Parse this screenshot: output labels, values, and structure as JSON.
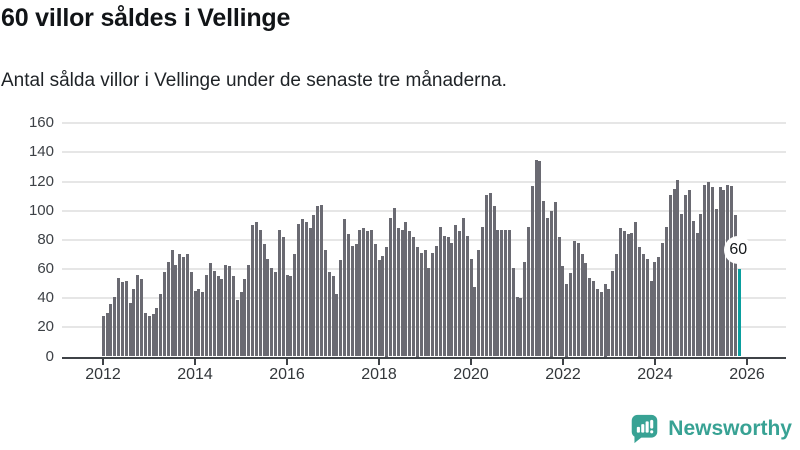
{
  "header": {
    "title": "60 villor såldes i Vellinge",
    "subtitle": "Antal sålda villor i Vellinge under de senaste tre månaderna."
  },
  "chart_data": {
    "type": "bar",
    "title": "60 villor såldes i Vellinge",
    "subtitle": "Antal sålda villor i Vellinge under de senaste tre månaderna.",
    "frequency": "monthly",
    "x_start": "2012-01",
    "x_end": "2025-11",
    "x_tick_labels": [
      "2012",
      "2014",
      "2016",
      "2018",
      "2020",
      "2022",
      "2024",
      "2026"
    ],
    "y_ticks": [
      0,
      20,
      40,
      60,
      80,
      100,
      120,
      140,
      160
    ],
    "ylim": [
      0,
      160
    ],
    "grid": "horizontal",
    "values": [
      28,
      30,
      36,
      41,
      54,
      51,
      52,
      37,
      46,
      56,
      53,
      30,
      28,
      29,
      33,
      43,
      58,
      65,
      73,
      63,
      70,
      68,
      70,
      58,
      45,
      46,
      44,
      56,
      64,
      59,
      55,
      53,
      63,
      62,
      55,
      39,
      44,
      53,
      63,
      90,
      92,
      87,
      77,
      67,
      61,
      58,
      87,
      82,
      56,
      55,
      70,
      91,
      94,
      92,
      88,
      97,
      103,
      104,
      73,
      58,
      55,
      43,
      66,
      94,
      84,
      76,
      77,
      87,
      88,
      86,
      87,
      77,
      66,
      69,
      75,
      95,
      102,
      88,
      87,
      92,
      86,
      82,
      75,
      71,
      73,
      61,
      71,
      76,
      89,
      83,
      82,
      78,
      90,
      86,
      95,
      83,
      67,
      48,
      73,
      89,
      111,
      112,
      103,
      87,
      87,
      87,
      87,
      61,
      41,
      40,
      65,
      89,
      117,
      135,
      134,
      107,
      95,
      100,
      106,
      82,
      62,
      50,
      57,
      79,
      78,
      70,
      64,
      54,
      52,
      46,
      44,
      50,
      46,
      59,
      70,
      88,
      86,
      84,
      85,
      92,
      75,
      70,
      67,
      52,
      65,
      68,
      78,
      89,
      111,
      115,
      121,
      98,
      111,
      114,
      93,
      85,
      98,
      118,
      120,
      116,
      101,
      116,
      114,
      118,
      117,
      97,
      60
    ],
    "highlight": {
      "index": 166,
      "value": 60,
      "label": "60"
    },
    "colors": {
      "bar": "#6a6a72",
      "highlight": "#0a9e9e",
      "gridline": "#e6e6e6",
      "axis": "#3f4347"
    }
  },
  "footer": {
    "brand": "Newsworthy",
    "brand_color": "#38a294"
  }
}
